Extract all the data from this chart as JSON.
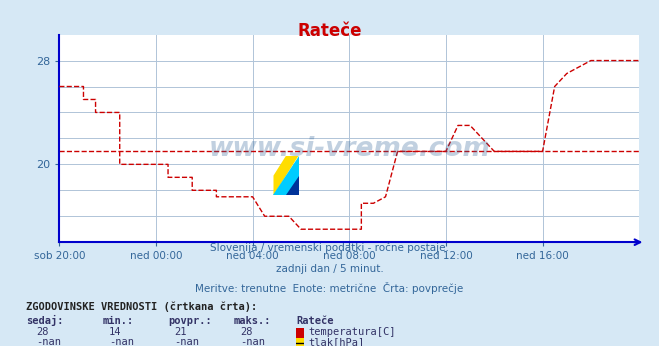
{
  "title": "Rateče",
  "title_color": "#cc0000",
  "bg_color": "#d6e8f5",
  "plot_bg_color": "#ffffff",
  "grid_color": "#b0c4d8",
  "axis_color": "#0000cc",
  "text_color": "#336699",
  "subtitle1": "Slovenija / vremenski podatki - ročne postaje.",
  "subtitle2": "zadnji dan / 5 minut.",
  "subtitle3": "Meritve: trenutne  Enote: metrične  Črta: povprečje",
  "footnote1": "ZGODOVINSKE VREDNOSTI (črtkana črta):",
  "footnote2_labels": [
    "sedaj:",
    "min.:",
    "povpr.:",
    "maks.:",
    "Rateče"
  ],
  "footnote3_vals": [
    "28",
    "14",
    "21",
    "28"
  ],
  "footnote3_series": "temperatura[C]",
  "footnote4_vals": [
    "-nan",
    "-nan",
    "-nan",
    "-nan"
  ],
  "footnote4_series": "tlak[hPa]",
  "xlim": [
    0,
    288
  ],
  "ylim": [
    14,
    30
  ],
  "avg_line_value": 21,
  "xtick_positions": [
    0,
    48,
    96,
    144,
    192,
    240
  ],
  "xtick_labels": [
    "sob 20:00",
    "ned 00:00",
    "ned 04:00",
    "ned 08:00",
    "ned 12:00",
    "ned 16:00"
  ],
  "ytick_positions": [
    20,
    28
  ],
  "ytick_labels": [
    "20",
    "28"
  ],
  "temp_color": "#cc0000",
  "temp_data_x": [
    0,
    12,
    12,
    12,
    12,
    18,
    18,
    18,
    18,
    30,
    30,
    30,
    30,
    48,
    48,
    54,
    54,
    54,
    54,
    66,
    66,
    66,
    66,
    78,
    78,
    78,
    78,
    96,
    96,
    102,
    102,
    102,
    102,
    114,
    114,
    120,
    120,
    144,
    144,
    150,
    150,
    150,
    150,
    156,
    156,
    162,
    162,
    168,
    168,
    180,
    180,
    192,
    192,
    198,
    198,
    204,
    204,
    216,
    216,
    240,
    240,
    246,
    246,
    252,
    252,
    258,
    258,
    264,
    264,
    288
  ],
  "temp_data_y": [
    26,
    26,
    26,
    25,
    25,
    25,
    25,
    24,
    24,
    24,
    24,
    20,
    20,
    20,
    20,
    20,
    20,
    19,
    19,
    19,
    19,
    18,
    18,
    18,
    18,
    17.5,
    17.5,
    17.5,
    17.5,
    16,
    16,
    16,
    16,
    16,
    16,
    15,
    15,
    15,
    15,
    15,
    15,
    17,
    17,
    17,
    17,
    17.5,
    17.5,
    21,
    21,
    21,
    21,
    21,
    21,
    23,
    23,
    23,
    23,
    21,
    21,
    21,
    21,
    26,
    26,
    27,
    27,
    27.5,
    27.5,
    28,
    28,
    28
  ],
  "watermark": "www.si-vreme.com",
  "watermark_color": "#336699",
  "logo_yellow": "#ffdd00",
  "logo_cyan": "#00ccff",
  "logo_blue": "#003399"
}
